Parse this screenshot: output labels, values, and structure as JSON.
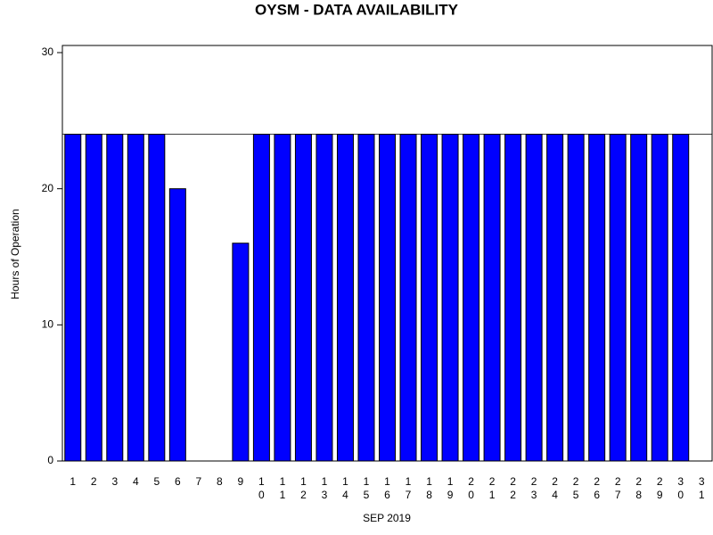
{
  "chart_data": {
    "type": "bar",
    "title": "OYSM - DATA AVAILABILITY",
    "x_label": "SEP 2019",
    "y_label": "Hours of Operation",
    "categories": [
      "1",
      "2",
      "3",
      "4",
      "5",
      "6",
      "7",
      "8",
      "9",
      "10",
      "11",
      "12",
      "13",
      "14",
      "15",
      "16",
      "17",
      "18",
      "19",
      "20",
      "21",
      "22",
      "23",
      "24",
      "25",
      "26",
      "27",
      "28",
      "29",
      "30",
      "31"
    ],
    "values": [
      24,
      24,
      24,
      24,
      24,
      20,
      0,
      0,
      16,
      24,
      24,
      24,
      24,
      24,
      24,
      24,
      24,
      24,
      24,
      24,
      24,
      24,
      24,
      24,
      24,
      24,
      24,
      24,
      24,
      24,
      0
    ],
    "color": "#0000ff",
    "reference_line": 24,
    "ylim": [
      0,
      30
    ],
    "yticks": [
      0,
      10,
      20,
      30
    ]
  }
}
